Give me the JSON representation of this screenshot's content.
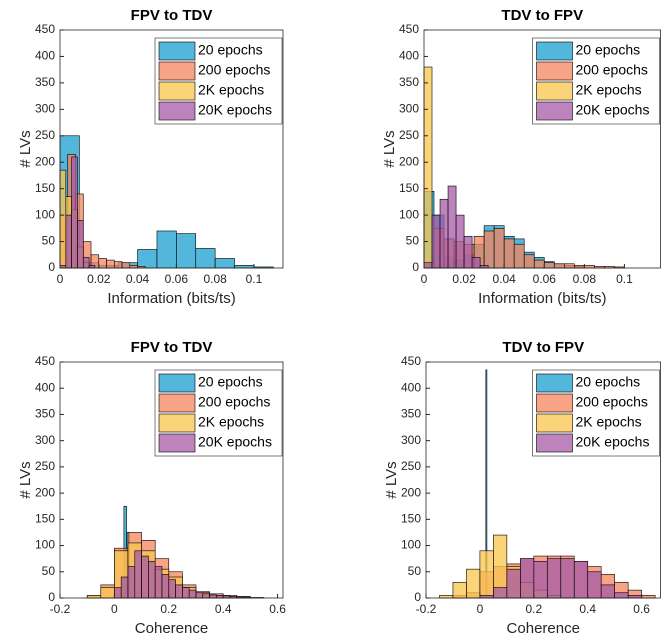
{
  "chart_data": [
    {
      "type": "histogram",
      "title": "FPV to TDV",
      "x_label": "Information (bits/ts)",
      "y_label": "# LVs",
      "xlim": [
        0,
        0.115
      ],
      "xticks": [
        0,
        0.02,
        0.04,
        0.06,
        0.08,
        0.1
      ],
      "ylim": [
        0,
        450
      ],
      "yticks": [
        0,
        50,
        100,
        150,
        200,
        250,
        300,
        350,
        400,
        450
      ],
      "legend": "upper right",
      "series": [
        {
          "name": "20 epochs",
          "color": "#1a9fd0",
          "bins": [
            0,
            0.01,
            0.02,
            0.03,
            0.04,
            0.05,
            0.06,
            0.07,
            0.08,
            0.09,
            0.1,
            0.11
          ],
          "values": [
            250,
            10,
            5,
            10,
            35,
            70,
            65,
            37,
            18,
            5,
            2
          ]
        },
        {
          "name": "200 epochs",
          "color": "#f7845e",
          "bins": [
            0,
            0.004,
            0.008,
            0.012,
            0.016,
            0.02,
            0.024,
            0.028,
            0.032,
            0.036,
            0.04,
            0.044
          ],
          "values": [
            100,
            215,
            140,
            50,
            25,
            18,
            15,
            12,
            10,
            5,
            3
          ]
        },
        {
          "name": "2K epochs",
          "color": "#f9c54c",
          "bins": [
            0,
            0.003,
            0.006,
            0.009,
            0.012,
            0.015
          ],
          "values": [
            185,
            135,
            110,
            40,
            10
          ]
        },
        {
          "name": "20K epochs",
          "color": "#a659a6",
          "bins": [
            0,
            0.003,
            0.006,
            0.009,
            0.012,
            0.015,
            0.018
          ],
          "values": [
            5,
            100,
            210,
            90,
            20,
            5
          ]
        }
      ]
    },
    {
      "type": "histogram",
      "title": "TDV to FPV",
      "x_label": "Information (bits/ts)",
      "y_label": "# LVs",
      "xlim": [
        0,
        0.118
      ],
      "xticks": [
        0,
        0.02,
        0.04,
        0.06,
        0.08,
        0.1
      ],
      "ylim": [
        0,
        450
      ],
      "yticks": [
        0,
        50,
        100,
        150,
        200,
        250,
        300,
        350,
        400,
        450
      ],
      "legend": "upper right",
      "series": [
        {
          "name": "20 epochs",
          "color": "#1a9fd0",
          "bins": [
            0,
            0.005,
            0.01,
            0.015,
            0.02,
            0.025,
            0.03,
            0.035,
            0.04,
            0.045,
            0.05,
            0.055,
            0.06,
            0.065,
            0.07,
            0.075,
            0.08
          ],
          "values": [
            145,
            100,
            20,
            15,
            25,
            45,
            80,
            80,
            60,
            55,
            30,
            20,
            12,
            8,
            5,
            3
          ]
        },
        {
          "name": "200 epochs",
          "color": "#f7845e",
          "bins": [
            0,
            0.005,
            0.01,
            0.015,
            0.02,
            0.025,
            0.03,
            0.035,
            0.04,
            0.045,
            0.05,
            0.055,
            0.06,
            0.065,
            0.07,
            0.075,
            0.08,
            0.085,
            0.09,
            0.095,
            0.1
          ],
          "values": [
            10,
            75,
            55,
            50,
            45,
            60,
            70,
            75,
            55,
            45,
            25,
            15,
            10,
            8,
            8,
            5,
            5,
            3,
            3,
            2
          ]
        },
        {
          "name": "2K epochs",
          "color": "#f9c54c",
          "bins": [
            0,
            0.004
          ],
          "values": [
            380
          ]
        },
        {
          "name": "20K epochs",
          "color": "#a659a6",
          "bins": [
            0,
            0.004,
            0.008,
            0.012,
            0.016,
            0.02,
            0.024,
            0.028,
            0.032
          ],
          "values": [
            10,
            100,
            130,
            155,
            100,
            60,
            20,
            5
          ]
        }
      ]
    },
    {
      "type": "histogram",
      "title": "FPV to TDV",
      "x_label": "Coherence",
      "y_label": "# LVs",
      "xlim": [
        -0.2,
        0.62
      ],
      "xticks": [
        -0.2,
        0,
        0.2,
        0.4,
        0.6
      ],
      "ylim": [
        0,
        450
      ],
      "yticks": [
        0,
        50,
        100,
        150,
        200,
        250,
        300,
        350,
        400,
        450
      ],
      "legend": "upper right",
      "series": [
        {
          "name": "20 epochs",
          "color": "#1a9fd0",
          "bins": [
            0.035,
            0.045,
            0.055
          ],
          "values": [
            175,
            125
          ]
        },
        {
          "name": "200 epochs",
          "color": "#f7845e",
          "bins": [
            -0.1,
            -0.05,
            0,
            0.05,
            0.1,
            0.15,
            0.2,
            0.25,
            0.3,
            0.35,
            0.4,
            0.45,
            0.5
          ],
          "values": [
            5,
            25,
            95,
            125,
            110,
            75,
            50,
            25,
            12,
            8,
            5,
            3
          ]
        },
        {
          "name": "2K epochs",
          "color": "#f9c54c",
          "bins": [
            -0.1,
            -0.05,
            0,
            0.05,
            0.1,
            0.15,
            0.2,
            0.25,
            0.3,
            0.35,
            0.4
          ],
          "values": [
            5,
            20,
            90,
            105,
            90,
            55,
            40,
            20,
            10,
            5
          ]
        },
        {
          "name": "20K epochs",
          "color": "#a659a6",
          "bins": [
            0,
            0.025,
            0.05,
            0.075,
            0.1,
            0.125,
            0.15,
            0.175,
            0.2,
            0.225,
            0.25,
            0.275,
            0.3,
            0.325,
            0.35,
            0.375,
            0.4,
            0.425,
            0.45,
            0.475,
            0.5,
            0.525,
            0.55
          ],
          "values": [
            20,
            40,
            60,
            90,
            80,
            70,
            60,
            45,
            35,
            25,
            20,
            15,
            10,
            8,
            6,
            5,
            4,
            3,
            2,
            2,
            1,
            1
          ]
        }
      ]
    },
    {
      "type": "histogram",
      "title": "TDV to FPV",
      "x_label": "Coherence",
      "y_label": "# LVs",
      "xlim": [
        -0.2,
        0.67
      ],
      "xticks": [
        -0.2,
        0,
        0.2,
        0.4,
        0.6
      ],
      "ylim": [
        0,
        450
      ],
      "yticks": [
        0,
        50,
        100,
        150,
        200,
        250,
        300,
        350,
        400,
        450
      ],
      "legend": "upper right",
      "series": [
        {
          "name": "20 epochs",
          "color": "#1a9fd0",
          "bins": [
            0.022,
            0.026
          ],
          "values": [
            435
          ]
        },
        {
          "name": "200 epochs",
          "color": "#f7845e",
          "bins": [
            -0.1,
            -0.05,
            0,
            0.05,
            0.1,
            0.15,
            0.2,
            0.25,
            0.3,
            0.35,
            0.4,
            0.45,
            0.5,
            0.55,
            0.6,
            0.65
          ],
          "values": [
            5,
            10,
            50,
            60,
            65,
            75,
            80,
            80,
            80,
            70,
            60,
            45,
            30,
            15,
            5
          ]
        },
        {
          "name": "2K epochs",
          "color": "#f9c54c",
          "bins": [
            -0.15,
            -0.1,
            -0.05,
            0,
            0.05,
            0.1,
            0.15,
            0.2,
            0.25,
            0.3
          ],
          "values": [
            5,
            30,
            55,
            90,
            120,
            60,
            30,
            15,
            5
          ]
        },
        {
          "name": "20K epochs",
          "color": "#a659a6",
          "bins": [
            0,
            0.05,
            0.1,
            0.15,
            0.2,
            0.25,
            0.3,
            0.35,
            0.4,
            0.45,
            0.5,
            0.55,
            0.6
          ],
          "values": [
            5,
            20,
            55,
            75,
            70,
            75,
            75,
            70,
            50,
            25,
            10,
            5
          ]
        }
      ]
    }
  ]
}
